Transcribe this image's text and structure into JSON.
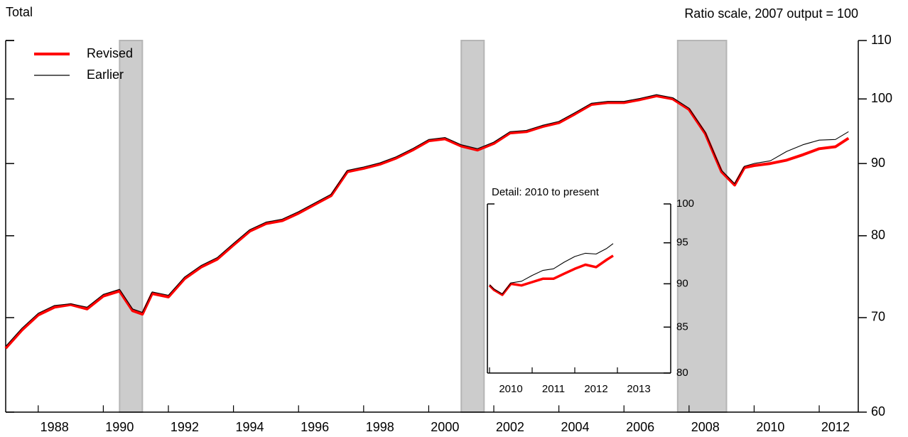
{
  "chart_data": [
    {
      "type": "line",
      "title": "Total",
      "subtitle": "Ratio scale, 2007 output = 100",
      "log_scale": true,
      "legend": "upper left",
      "xlim": [
        1987.0,
        2013.2
      ],
      "xticks": [
        1988,
        1990,
        1992,
        1994,
        1996,
        1998,
        2000,
        2002,
        2004,
        2006,
        2008,
        2010,
        2012
      ],
      "ylim": [
        60,
        110
      ],
      "yticks": [
        60,
        70,
        80,
        90,
        100,
        110
      ],
      "shaded_periods": [
        [
          1990.5,
          1991.2
        ],
        [
          2001.0,
          2001.7
        ],
        [
          2007.65,
          2009.15
        ]
      ],
      "x": [
        1987.0,
        1987.5,
        1988.0,
        1988.5,
        1989.0,
        1989.5,
        1990.0,
        1990.5,
        1990.9,
        1991.2,
        1991.5,
        1992.0,
        1992.5,
        1993.0,
        1993.5,
        1994.0,
        1994.5,
        1995.0,
        1995.5,
        1996.0,
        1996.5,
        1997.0,
        1997.5,
        1998.0,
        1998.5,
        1999.0,
        1999.5,
        2000.0,
        2000.5,
        2001.0,
        2001.5,
        2002.0,
        2002.5,
        2003.0,
        2003.5,
        2004.0,
        2004.5,
        2005.0,
        2005.5,
        2006.0,
        2006.5,
        2007.0,
        2007.5,
        2008.0,
        2008.5,
        2008.8,
        2009.0,
        2009.4,
        2009.7,
        2010.0,
        2010.5,
        2011.0,
        2011.5,
        2012.0,
        2012.5,
        2012.9
      ],
      "series": [
        {
          "name": "Revised",
          "color": "#ff0000",
          "values": [
            66.6,
            68.6,
            70.3,
            71.2,
            71.5,
            71.0,
            72.5,
            73.1,
            70.8,
            70.4,
            72.8,
            72.4,
            74.6,
            76.0,
            77.0,
            78.8,
            80.6,
            81.6,
            82.0,
            83.0,
            84.2,
            85.4,
            88.8,
            89.3,
            89.9,
            90.8,
            92.0,
            93.4,
            93.7,
            92.6,
            92.0,
            93.0,
            94.6,
            94.8,
            95.6,
            96.2,
            97.6,
            99.1,
            99.4,
            99.4,
            99.9,
            100.5,
            100.0,
            98.3,
            94.5,
            91.0,
            88.8,
            86.9,
            89.4,
            89.7,
            90.0,
            90.5,
            91.3,
            92.2,
            92.5,
            93.8
          ]
        },
        {
          "name": "Earlier",
          "color": "#000000",
          "values": [
            66.8,
            68.8,
            70.5,
            71.4,
            71.6,
            71.2,
            72.7,
            73.3,
            71.0,
            70.6,
            73.0,
            72.6,
            74.8,
            76.2,
            77.2,
            79.0,
            80.8,
            81.8,
            82.2,
            83.2,
            84.4,
            85.6,
            89.0,
            89.5,
            90.1,
            91.0,
            92.2,
            93.6,
            93.9,
            92.8,
            92.2,
            93.2,
            94.8,
            95.0,
            95.8,
            96.4,
            97.8,
            99.3,
            99.6,
            99.6,
            100.1,
            100.7,
            100.2,
            98.5,
            94.7,
            91.2,
            89.0,
            87.1,
            89.6,
            90.0,
            90.4,
            91.8,
            92.8,
            93.5,
            93.6,
            94.8
          ]
        }
      ]
    },
    {
      "type": "line",
      "title": "Detail: 2010 to present",
      "log_scale": true,
      "xlim": [
        2009.95,
        2014.25
      ],
      "xticks": [
        2010,
        2011,
        2012,
        2013
      ],
      "ylim": [
        80,
        100
      ],
      "yticks": [
        80,
        85,
        90,
        95,
        100
      ],
      "x": [
        2010.0,
        2010.1,
        2010.3,
        2010.5,
        2010.75,
        2011.0,
        2011.25,
        2011.5,
        2011.75,
        2012.0,
        2012.25,
        2012.5,
        2012.75,
        2012.9
      ],
      "series": [
        {
          "name": "Revised",
          "color": "#ff0000",
          "values": [
            89.8,
            89.3,
            88.7,
            90.0,
            89.8,
            90.2,
            90.6,
            90.6,
            91.2,
            91.8,
            92.3,
            92.0,
            92.9,
            93.4
          ]
        },
        {
          "name": "Earlier",
          "color": "#000000",
          "values": [
            89.9,
            89.4,
            88.8,
            90.1,
            90.3,
            91.0,
            91.6,
            91.8,
            92.6,
            93.3,
            93.7,
            93.6,
            94.3,
            94.9
          ]
        }
      ]
    }
  ]
}
